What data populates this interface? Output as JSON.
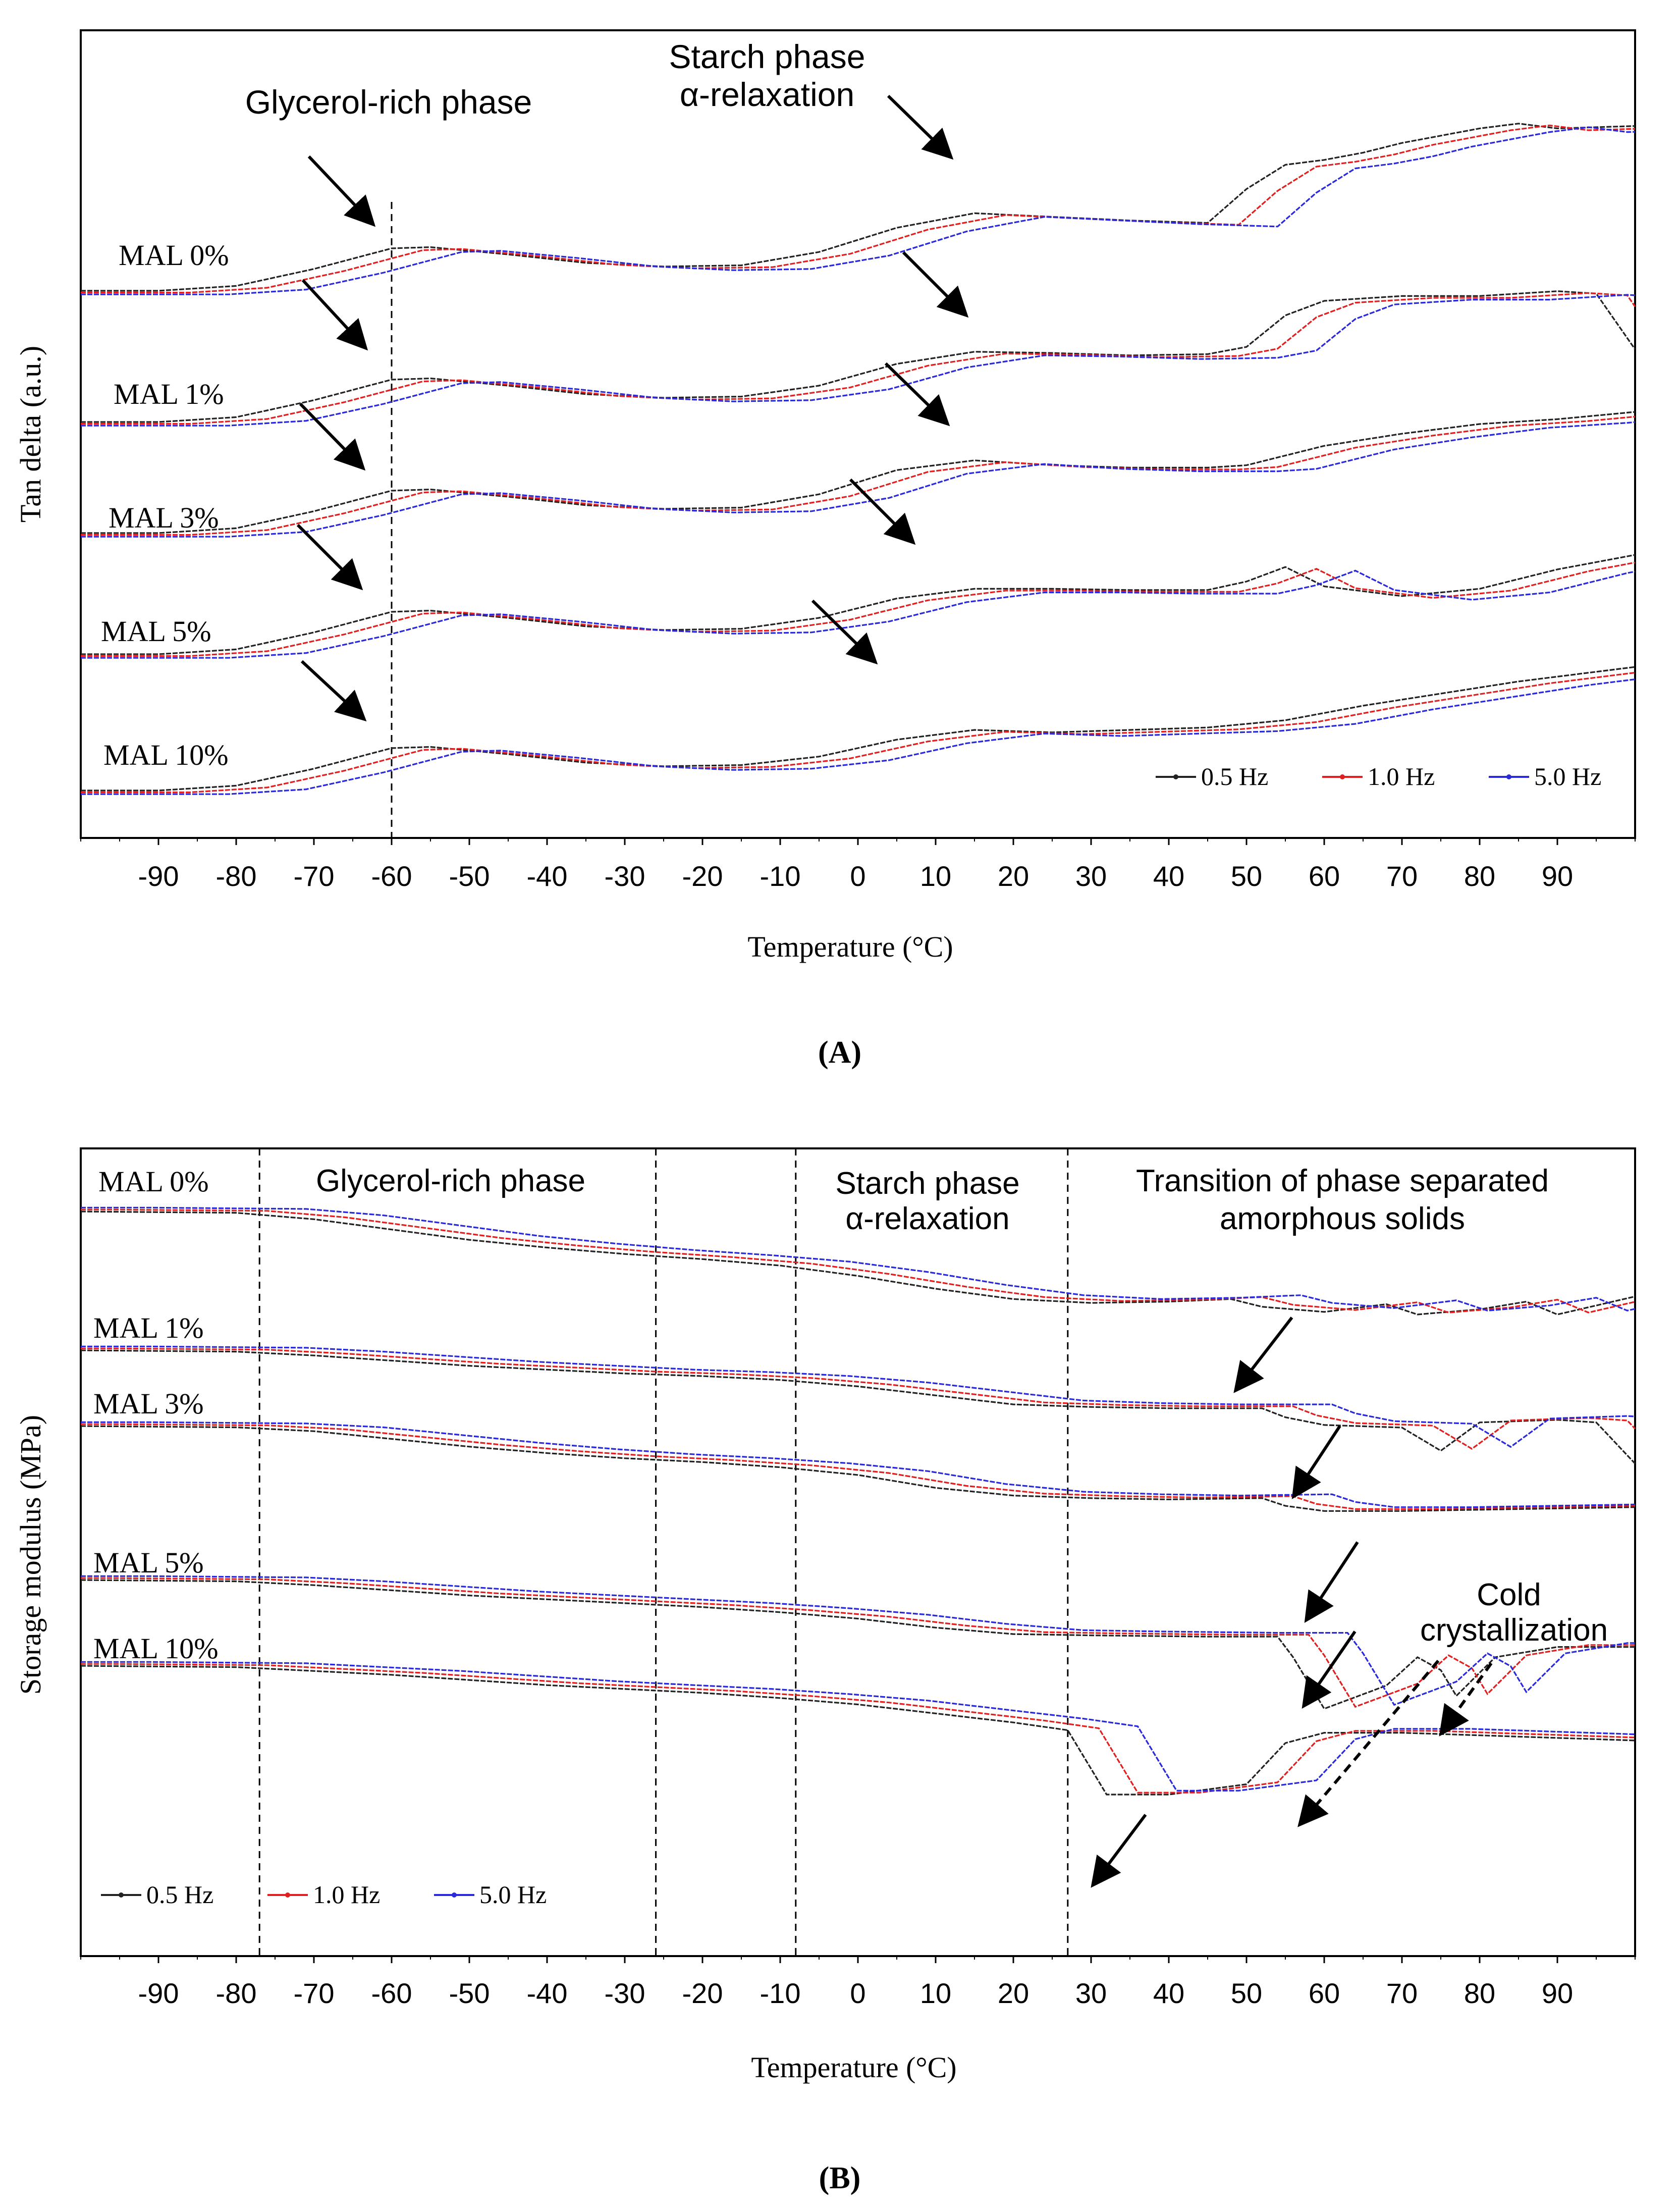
{
  "chart_data": [
    {
      "panel": "A",
      "type": "line",
      "panel_label": "(A)",
      "xlabel": "Temperature (°C)",
      "ylabel": "Tan delta (a.u.)",
      "xlim": [
        -100,
        100
      ],
      "x_ticks": [
        -90,
        -80,
        -70,
        -60,
        -50,
        -40,
        -30,
        -20,
        -10,
        0,
        10,
        20,
        30,
        40,
        50,
        60,
        70,
        80,
        90
      ],
      "legend": [
        "0.5 Hz",
        "1.0 Hz",
        "5.0 Hz"
      ],
      "legend_position": "bottom-right",
      "annotations": [
        "Glycerol-rich phase",
        "Starch phase",
        "α-relaxation"
      ],
      "reference_line_x": -60,
      "series_colors": [
        "#222222",
        "#e02020",
        "#2a2ad8"
      ],
      "samples": [
        {
          "name": "MAL  0%",
          "offset": 0,
          "points": [
            [
              -100,
              0.1
            ],
            [
              -90,
              0.1
            ],
            [
              -80,
              0.14
            ],
            [
              -70,
              0.28
            ],
            [
              -60,
              0.45
            ],
            [
              -55,
              0.46
            ],
            [
              -45,
              0.4
            ],
            [
              -35,
              0.33
            ],
            [
              -25,
              0.3
            ],
            [
              -15,
              0.31
            ],
            [
              -5,
              0.42
            ],
            [
              5,
              0.62
            ],
            [
              15,
              0.74
            ],
            [
              25,
              0.71
            ],
            [
              35,
              0.68
            ],
            [
              45,
              0.66
            ],
            [
              50,
              0.94
            ],
            [
              55,
              1.14
            ],
            [
              60,
              1.18
            ],
            [
              65,
              1.24
            ],
            [
              70,
              1.32
            ],
            [
              75,
              1.38
            ],
            [
              80,
              1.44
            ],
            [
              85,
              1.48
            ],
            [
              90,
              1.44
            ],
            [
              100,
              1.46
            ]
          ]
        },
        {
          "name": "MAL  1%",
          "offset": 1,
          "points": [
            [
              -100,
              0.1
            ],
            [
              -90,
              0.1
            ],
            [
              -80,
              0.14
            ],
            [
              -70,
              0.28
            ],
            [
              -60,
              0.45
            ],
            [
              -55,
              0.46
            ],
            [
              -45,
              0.4
            ],
            [
              -35,
              0.33
            ],
            [
              -25,
              0.3
            ],
            [
              -15,
              0.31
            ],
            [
              -5,
              0.4
            ],
            [
              5,
              0.58
            ],
            [
              15,
              0.68
            ],
            [
              25,
              0.67
            ],
            [
              35,
              0.65
            ],
            [
              45,
              0.66
            ],
            [
              50,
              0.72
            ],
            [
              55,
              0.98
            ],
            [
              60,
              1.1
            ],
            [
              65,
              1.12
            ],
            [
              70,
              1.14
            ],
            [
              80,
              1.14
            ],
            [
              90,
              1.18
            ],
            [
              95,
              1.16
            ],
            [
              100,
              0.7
            ]
          ]
        },
        {
          "name": "MAL  3%",
          "offset": 2,
          "points": [
            [
              -100,
              0.1
            ],
            [
              -90,
              0.1
            ],
            [
              -80,
              0.14
            ],
            [
              -70,
              0.28
            ],
            [
              -60,
              0.45
            ],
            [
              -55,
              0.46
            ],
            [
              -45,
              0.4
            ],
            [
              -35,
              0.33
            ],
            [
              -25,
              0.3
            ],
            [
              -15,
              0.31
            ],
            [
              -5,
              0.42
            ],
            [
              5,
              0.62
            ],
            [
              15,
              0.7
            ],
            [
              25,
              0.66
            ],
            [
              35,
              0.64
            ],
            [
              45,
              0.64
            ],
            [
              50,
              0.66
            ],
            [
              55,
              0.74
            ],
            [
              60,
              0.82
            ],
            [
              70,
              0.92
            ],
            [
              80,
              1.0
            ],
            [
              90,
              1.04
            ],
            [
              100,
              1.1
            ]
          ]
        },
        {
          "name": "MAL  5%",
          "offset": 3,
          "points": [
            [
              -100,
              0.1
            ],
            [
              -90,
              0.1
            ],
            [
              -80,
              0.14
            ],
            [
              -70,
              0.28
            ],
            [
              -60,
              0.45
            ],
            [
              -55,
              0.46
            ],
            [
              -45,
              0.4
            ],
            [
              -35,
              0.33
            ],
            [
              -25,
              0.3
            ],
            [
              -15,
              0.31
            ],
            [
              -5,
              0.4
            ],
            [
              5,
              0.56
            ],
            [
              15,
              0.64
            ],
            [
              25,
              0.64
            ],
            [
              35,
              0.63
            ],
            [
              45,
              0.63
            ],
            [
              50,
              0.7
            ],
            [
              55,
              0.82
            ],
            [
              60,
              0.66
            ],
            [
              70,
              0.58
            ],
            [
              80,
              0.64
            ],
            [
              90,
              0.8
            ],
            [
              100,
              0.92
            ]
          ]
        },
        {
          "name": "MAL  10%",
          "offset": 4,
          "points": [
            [
              -100,
              0.1
            ],
            [
              -90,
              0.1
            ],
            [
              -80,
              0.14
            ],
            [
              -70,
              0.28
            ],
            [
              -60,
              0.45
            ],
            [
              -55,
              0.46
            ],
            [
              -45,
              0.4
            ],
            [
              -35,
              0.33
            ],
            [
              -25,
              0.3
            ],
            [
              -15,
              0.31
            ],
            [
              -5,
              0.38
            ],
            [
              5,
              0.52
            ],
            [
              15,
              0.6
            ],
            [
              25,
              0.58
            ],
            [
              35,
              0.6
            ],
            [
              45,
              0.62
            ],
            [
              55,
              0.68
            ],
            [
              65,
              0.8
            ],
            [
              75,
              0.9
            ],
            [
              85,
              1.0
            ],
            [
              95,
              1.08
            ],
            [
              100,
              1.12
            ]
          ]
        }
      ]
    },
    {
      "panel": "B",
      "type": "line",
      "panel_label": "(B)",
      "xlabel": "Temperature (°C)",
      "ylabel": "Storage modulus (MPa)",
      "xlim": [
        -100,
        100
      ],
      "x_ticks": [
        -90,
        -80,
        -70,
        -60,
        -50,
        -40,
        -30,
        -20,
        -10,
        0,
        10,
        20,
        30,
        40,
        50,
        60,
        70,
        80,
        90
      ],
      "legend": [
        "0.5 Hz",
        "1.0 Hz",
        "5.0 Hz"
      ],
      "legend_position": "bottom-left",
      "region_boundaries_x": [
        -77,
        -26,
        -8,
        27
      ],
      "region_labels": [
        "Glycerol-rich phase",
        "Starch phase",
        "α-relaxation",
        "Transition of phase separated",
        "amorphous  solids"
      ],
      "annotations": [
        "Cold",
        "crystallization"
      ],
      "series_colors": [
        "#222222",
        "#e02020",
        "#2a2ad8"
      ],
      "samples": [
        {
          "name": "MAL  0%",
          "offset": 0,
          "points": [
            [
              -100,
              1.0
            ],
            [
              -80,
              0.99
            ],
            [
              -70,
              0.94
            ],
            [
              -60,
              0.86
            ],
            [
              -50,
              0.78
            ],
            [
              -40,
              0.72
            ],
            [
              -30,
              0.67
            ],
            [
              -20,
              0.63
            ],
            [
              -10,
              0.58
            ],
            [
              0,
              0.5
            ],
            [
              10,
              0.4
            ],
            [
              20,
              0.32
            ],
            [
              30,
              0.29
            ],
            [
              40,
              0.3
            ],
            [
              48,
              0.32
            ],
            [
              52,
              0.26
            ],
            [
              60,
              0.22
            ],
            [
              68,
              0.28
            ],
            [
              72,
              0.2
            ],
            [
              80,
              0.24
            ],
            [
              86,
              0.3
            ],
            [
              90,
              0.2
            ],
            [
              100,
              0.34
            ]
          ]
        },
        {
          "name": "MAL  1%",
          "offset": 1,
          "points": [
            [
              -100,
              1.0
            ],
            [
              -80,
              0.99
            ],
            [
              -70,
              0.96
            ],
            [
              -60,
              0.92
            ],
            [
              -50,
              0.88
            ],
            [
              -40,
              0.85
            ],
            [
              -30,
              0.82
            ],
            [
              -20,
              0.8
            ],
            [
              -10,
              0.77
            ],
            [
              0,
              0.72
            ],
            [
              10,
              0.65
            ],
            [
              20,
              0.58
            ],
            [
              30,
              0.56
            ],
            [
              40,
              0.55
            ],
            [
              52,
              0.55
            ],
            [
              55,
              0.48
            ],
            [
              60,
              0.42
            ],
            [
              70,
              0.4
            ],
            [
              75,
              0.22
            ],
            [
              80,
              0.44
            ],
            [
              90,
              0.46
            ],
            [
              95,
              0.44
            ],
            [
              100,
              0.12
            ]
          ]
        },
        {
          "name": "MAL  3%",
          "offset": 2,
          "points": [
            [
              -100,
              1.0
            ],
            [
              -80,
              0.99
            ],
            [
              -70,
              0.96
            ],
            [
              -60,
              0.9
            ],
            [
              -50,
              0.84
            ],
            [
              -40,
              0.79
            ],
            [
              -30,
              0.75
            ],
            [
              -20,
              0.72
            ],
            [
              -10,
              0.68
            ],
            [
              0,
              0.62
            ],
            [
              10,
              0.52
            ],
            [
              20,
              0.46
            ],
            [
              30,
              0.44
            ],
            [
              40,
              0.43
            ],
            [
              52,
              0.44
            ],
            [
              55,
              0.38
            ],
            [
              60,
              0.34
            ],
            [
              70,
              0.34
            ],
            [
              80,
              0.35
            ],
            [
              90,
              0.36
            ],
            [
              100,
              0.37
            ]
          ]
        },
        {
          "name": "MAL  5%",
          "offset": 3,
          "points": [
            [
              -100,
              1.0
            ],
            [
              -80,
              0.99
            ],
            [
              -70,
              0.96
            ],
            [
              -60,
              0.92
            ],
            [
              -50,
              0.88
            ],
            [
              -40,
              0.85
            ],
            [
              -30,
              0.82
            ],
            [
              -20,
              0.79
            ],
            [
              -10,
              0.75
            ],
            [
              0,
              0.7
            ],
            [
              10,
              0.63
            ],
            [
              20,
              0.58
            ],
            [
              30,
              0.57
            ],
            [
              45,
              0.56
            ],
            [
              54,
              0.56
            ],
            [
              56,
              0.4
            ],
            [
              60,
              0.0
            ],
            [
              68,
              0.18
            ],
            [
              72,
              0.4
            ],
            [
              75,
              0.3
            ],
            [
              77,
              0.1
            ],
            [
              82,
              0.4
            ],
            [
              90,
              0.48
            ],
            [
              100,
              0.48
            ]
          ]
        },
        {
          "name": "MAL  10%",
          "offset": 4,
          "points": [
            [
              -100,
              1.0
            ],
            [
              -80,
              0.99
            ],
            [
              -70,
              0.96
            ],
            [
              -60,
              0.93
            ],
            [
              -50,
              0.89
            ],
            [
              -40,
              0.85
            ],
            [
              -30,
              0.82
            ],
            [
              -20,
              0.79
            ],
            [
              -10,
              0.75
            ],
            [
              0,
              0.7
            ],
            [
              10,
              0.63
            ],
            [
              20,
              0.56
            ],
            [
              27,
              0.5
            ],
            [
              32,
              0.0
            ],
            [
              40,
              0.0
            ],
            [
              50,
              0.08
            ],
            [
              55,
              0.4
            ],
            [
              60,
              0.48
            ],
            [
              70,
              0.48
            ],
            [
              80,
              0.46
            ],
            [
              90,
              0.44
            ],
            [
              100,
              0.42
            ]
          ]
        }
      ]
    }
  ]
}
